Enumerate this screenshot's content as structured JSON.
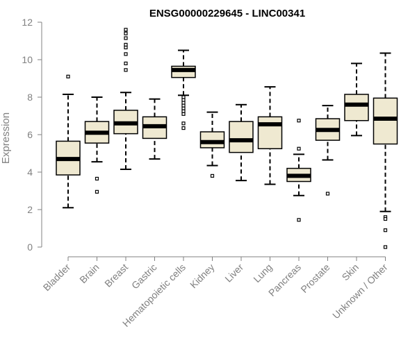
{
  "chart_data": {
    "type": "box",
    "title": "ENSG00000229645 - LINC00341",
    "xlabel": "",
    "ylabel": "Expression",
    "ylim": [
      0,
      12
    ],
    "yticks": [
      0,
      2,
      4,
      6,
      8,
      10,
      12
    ],
    "grid": false,
    "box_fill": "#efe9d1",
    "categories": [
      "Bladder",
      "Brain",
      "Breast",
      "Gastric",
      "Hematopoietic cells",
      "Kidney",
      "Liver",
      "Lung",
      "Pancreas",
      "Prostate",
      "Skin",
      "Unknown / Other"
    ],
    "boxes": [
      {
        "category": "Bladder",
        "whisker_low": 2.1,
        "q1": 3.85,
        "median": 4.7,
        "q3": 5.65,
        "whisker_high": 8.15,
        "outliers": [
          9.1
        ]
      },
      {
        "category": "Brain",
        "whisker_low": 4.55,
        "q1": 5.55,
        "median": 6.1,
        "q3": 6.7,
        "whisker_high": 8.0,
        "outliers": [
          3.65,
          2.95
        ]
      },
      {
        "category": "Breast",
        "whisker_low": 4.15,
        "q1": 6.05,
        "median": 6.6,
        "q3": 7.3,
        "whisker_high": 8.25,
        "outliers": [
          9.45,
          9.8,
          10.3,
          10.65,
          10.8,
          11.15,
          11.4,
          11.6
        ]
      },
      {
        "category": "Gastric",
        "whisker_low": 4.7,
        "q1": 5.8,
        "median": 6.45,
        "q3": 6.95,
        "whisker_high": 7.9,
        "outliers": []
      },
      {
        "category": "Hematopoietic cells",
        "whisker_low": 8.1,
        "q1": 9.05,
        "median": 9.45,
        "q3": 9.65,
        "whisker_high": 10.5,
        "outliers": [
          8.0,
          7.85,
          7.7,
          7.55,
          7.4,
          7.25,
          7.1,
          6.6,
          6.35
        ]
      },
      {
        "category": "Kidney",
        "whisker_low": 4.35,
        "q1": 5.3,
        "median": 5.6,
        "q3": 6.15,
        "whisker_high": 7.2,
        "outliers": [
          3.8
        ]
      },
      {
        "category": "Liver",
        "whisker_low": 3.55,
        "q1": 5.05,
        "median": 5.7,
        "q3": 6.7,
        "whisker_high": 7.6,
        "outliers": []
      },
      {
        "category": "Lung",
        "whisker_low": 3.35,
        "q1": 5.25,
        "median": 6.55,
        "q3": 6.95,
        "whisker_high": 8.55,
        "outliers": []
      },
      {
        "category": "Pancreas",
        "whisker_low": 2.75,
        "q1": 3.5,
        "median": 3.8,
        "q3": 4.2,
        "whisker_high": 4.95,
        "outliers": [
          6.75,
          5.25,
          1.45
        ]
      },
      {
        "category": "Prostate",
        "whisker_low": 4.65,
        "q1": 5.7,
        "median": 6.25,
        "q3": 6.85,
        "whisker_high": 7.55,
        "outliers": [
          2.85
        ]
      },
      {
        "category": "Skin",
        "whisker_low": 5.95,
        "q1": 6.75,
        "median": 7.6,
        "q3": 8.15,
        "whisker_high": 9.8,
        "outliers": []
      },
      {
        "category": "Unknown / Other",
        "whisker_low": 1.9,
        "q1": 5.5,
        "median": 6.85,
        "q3": 7.95,
        "whisker_high": 10.35,
        "outliers": [
          1.6,
          1.5,
          0.9,
          0.0
        ]
      }
    ]
  }
}
